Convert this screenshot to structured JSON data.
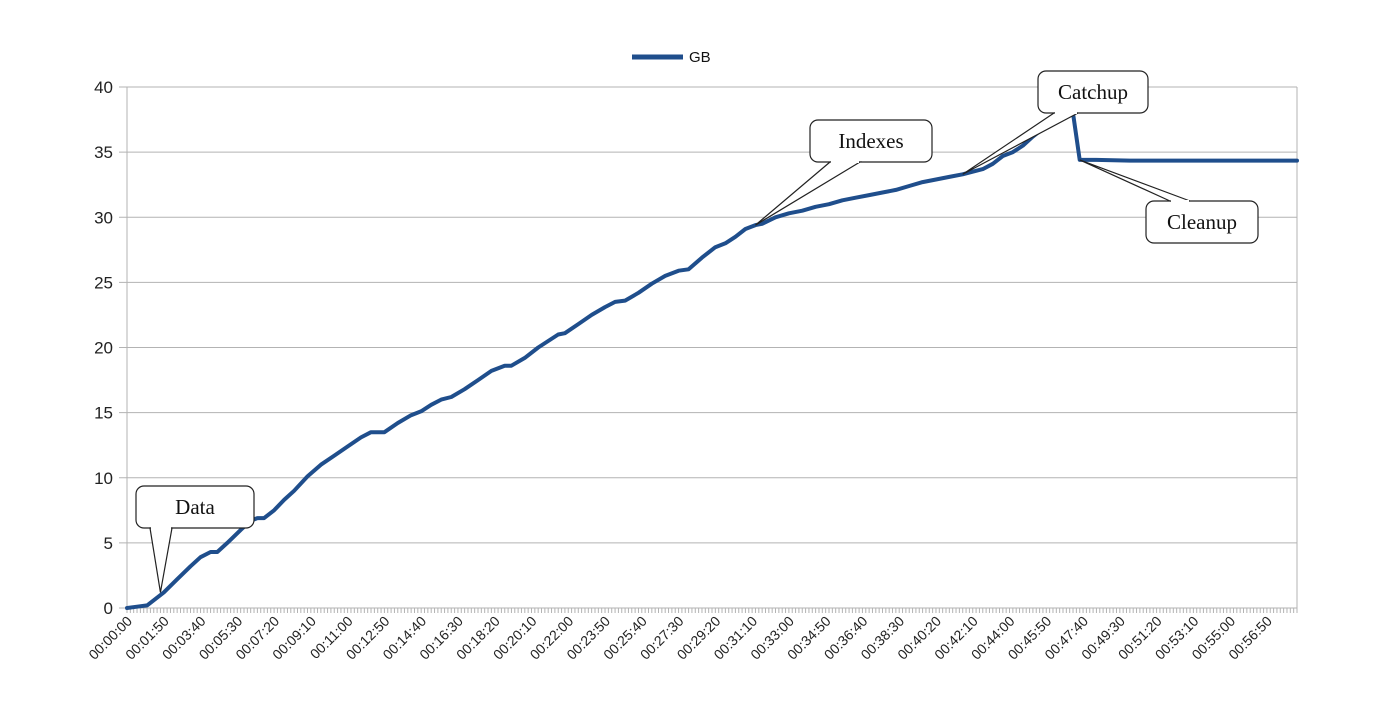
{
  "chart_data": {
    "type": "line",
    "xlabel": "",
    "ylabel": "",
    "ylim": [
      0,
      40
    ],
    "yticks": [
      "0",
      "5",
      "10",
      "15",
      "20",
      "25",
      "30",
      "35",
      "40"
    ],
    "xticks": [
      "00:00:00",
      "00:01:50",
      "00:03:40",
      "00:05:30",
      "00:07:20",
      "00:09:10",
      "00:11:00",
      "00:12:50",
      "00:14:40",
      "00:16:30",
      "00:18:20",
      "00:20:10",
      "00:22:00",
      "00:23:50",
      "00:25:40",
      "00:27:30",
      "00:29:20",
      "00:31:10",
      "00:33:00",
      "00:34:50",
      "00:36:40",
      "00:38:30",
      "00:40:20",
      "00:42:10",
      "00:44:00",
      "00:45:50",
      "00:47:40",
      "00:49:30",
      "00:51:20",
      "00:53:10",
      "00:55:00",
      "00:56:50"
    ],
    "x_range_seconds": [
      0,
      3500
    ],
    "grid": true,
    "legend_position": "top-center",
    "series": [
      {
        "name": "GB",
        "color": "#1f4e8c",
        "points": [
          [
            0,
            0
          ],
          [
            30,
            0.1
          ],
          [
            60,
            0.2
          ],
          [
            110,
            1.2
          ],
          [
            150,
            2.2
          ],
          [
            190,
            3.2
          ],
          [
            220,
            3.9
          ],
          [
            250,
            4.3
          ],
          [
            270,
            4.3
          ],
          [
            300,
            5.0
          ],
          [
            340,
            6.0
          ],
          [
            370,
            6.7
          ],
          [
            390,
            6.9
          ],
          [
            410,
            6.9
          ],
          [
            440,
            7.5
          ],
          [
            470,
            8.3
          ],
          [
            500,
            9.0
          ],
          [
            540,
            10.1
          ],
          [
            580,
            11.0
          ],
          [
            620,
            11.7
          ],
          [
            660,
            12.4
          ],
          [
            700,
            13.1
          ],
          [
            730,
            13.5
          ],
          [
            770,
            13.5
          ],
          [
            810,
            14.2
          ],
          [
            850,
            14.8
          ],
          [
            880,
            15.1
          ],
          [
            910,
            15.6
          ],
          [
            940,
            16.0
          ],
          [
            970,
            16.2
          ],
          [
            1010,
            16.8
          ],
          [
            1050,
            17.5
          ],
          [
            1090,
            18.2
          ],
          [
            1130,
            18.6
          ],
          [
            1150,
            18.6
          ],
          [
            1190,
            19.2
          ],
          [
            1230,
            20.0
          ],
          [
            1260,
            20.5
          ],
          [
            1290,
            21.0
          ],
          [
            1310,
            21.1
          ],
          [
            1350,
            21.8
          ],
          [
            1390,
            22.5
          ],
          [
            1430,
            23.1
          ],
          [
            1460,
            23.5
          ],
          [
            1490,
            23.6
          ],
          [
            1530,
            24.2
          ],
          [
            1570,
            24.9
          ],
          [
            1610,
            25.5
          ],
          [
            1650,
            25.9
          ],
          [
            1680,
            26.0
          ],
          [
            1720,
            26.9
          ],
          [
            1760,
            27.7
          ],
          [
            1790,
            28.0
          ],
          [
            1820,
            28.5
          ],
          [
            1850,
            29.1
          ],
          [
            1880,
            29.4
          ],
          [
            1900,
            29.5
          ],
          [
            1940,
            30.0
          ],
          [
            1980,
            30.3
          ],
          [
            2020,
            30.5
          ],
          [
            2060,
            30.8
          ],
          [
            2100,
            31.0
          ],
          [
            2140,
            31.3
          ],
          [
            2180,
            31.5
          ],
          [
            2220,
            31.7
          ],
          [
            2260,
            31.9
          ],
          [
            2300,
            32.1
          ],
          [
            2340,
            32.4
          ],
          [
            2380,
            32.7
          ],
          [
            2420,
            32.9
          ],
          [
            2460,
            33.1
          ],
          [
            2500,
            33.3
          ],
          [
            2530,
            33.5
          ],
          [
            2560,
            33.7
          ],
          [
            2590,
            34.1
          ],
          [
            2620,
            34.7
          ],
          [
            2650,
            35.0
          ],
          [
            2680,
            35.5
          ],
          [
            2710,
            36.2
          ],
          [
            2740,
            36.8
          ],
          [
            2770,
            37.4
          ],
          [
            2800,
            37.6
          ],
          [
            2830,
            38.0
          ],
          [
            2850,
            34.4
          ],
          [
            2900,
            34.4
          ],
          [
            3000,
            34.35
          ],
          [
            3100,
            34.35
          ],
          [
            3200,
            34.35
          ],
          [
            3300,
            34.35
          ],
          [
            3400,
            34.35
          ],
          [
            3500,
            34.35
          ]
        ]
      }
    ],
    "annotations": [
      {
        "label": "Data",
        "x": 100,
        "y": 1.2
      },
      {
        "label": "Indexes",
        "x": 1880,
        "y": 29.4
      },
      {
        "label": "Catchup",
        "x": 2500,
        "y": 33.3
      },
      {
        "label": "Cleanup",
        "x": 2850,
        "y": 34.4
      }
    ]
  }
}
